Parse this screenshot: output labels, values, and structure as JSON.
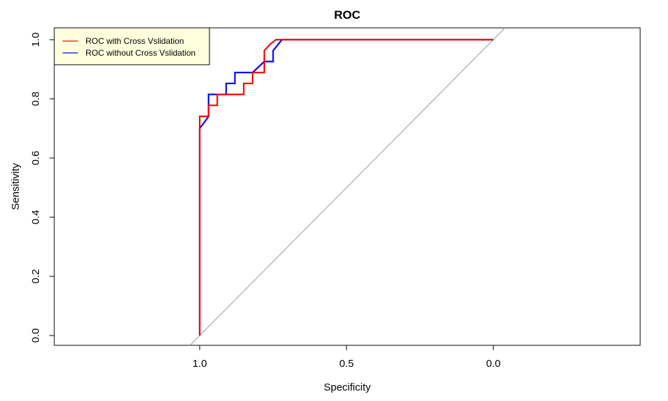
{
  "chart_data": {
    "type": "line",
    "title": "ROC",
    "xlabel": "Specificity",
    "ylabel": "Sensitivity",
    "xlim": [
      1.5,
      -0.5
    ],
    "ylim": [
      0,
      1
    ],
    "x_reversed": true,
    "x_ticks": [
      1.0,
      0.5,
      0.0
    ],
    "x_tick_labels": [
      "1.0",
      "0.5",
      "0.0"
    ],
    "y_ticks": [
      0.0,
      0.2,
      0.4,
      0.6,
      0.8,
      1.0
    ],
    "y_tick_labels": [
      "0.0",
      "0.2",
      "0.4",
      "0.6",
      "0.8",
      "1.0"
    ],
    "grid": false,
    "legend_position": "top-left",
    "reference_line": {
      "from": [
        1,
        0
      ],
      "to": [
        0,
        1
      ],
      "color": "#999999"
    },
    "series": [
      {
        "name": "ROC without Cross Vslidation",
        "color": "#0000ff",
        "x": [
          1.0,
          1.0,
          0.97,
          0.97,
          0.91,
          0.91,
          0.88,
          0.88,
          0.82,
          0.78,
          0.78,
          0.75,
          0.75,
          0.72,
          0.0
        ],
        "y": [
          0.0,
          0.7,
          0.74,
          0.815,
          0.815,
          0.852,
          0.852,
          0.889,
          0.889,
          0.926,
          0.926,
          0.926,
          0.963,
          1.0,
          1.0
        ]
      },
      {
        "name": "ROC with Cross Vslidation",
        "color": "#ff0000",
        "x": [
          1.0,
          1.0,
          0.97,
          0.97,
          0.94,
          0.94,
          0.85,
          0.85,
          0.82,
          0.82,
          0.78,
          0.78,
          0.76,
          0.74,
          0.0
        ],
        "y": [
          0.0,
          0.741,
          0.741,
          0.778,
          0.778,
          0.815,
          0.815,
          0.852,
          0.852,
          0.889,
          0.889,
          0.963,
          0.985,
          1.0,
          1.0
        ]
      }
    ],
    "legend": {
      "background": "#ffffdd",
      "items": [
        {
          "label": "ROC with Cross Vslidation",
          "color": "#ff0000"
        },
        {
          "label": "ROC without Cross Vslidation",
          "color": "#0000ff"
        }
      ]
    }
  }
}
